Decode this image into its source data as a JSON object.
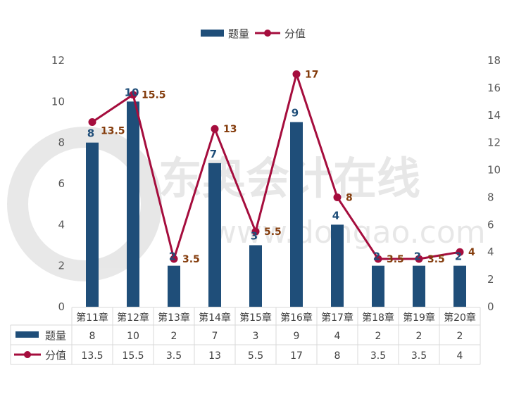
{
  "watermark": {
    "text": "东奥会计在线",
    "url": "www.dongao.com"
  },
  "chart_data": {
    "type": "bar+line",
    "categories": [
      "第11章",
      "第12章",
      "第13章",
      "第14章",
      "第15章",
      "第16章",
      "第17章",
      "第18章",
      "第19章",
      "第20章"
    ],
    "series": [
      {
        "name": "题量",
        "type": "bar",
        "axis": "left",
        "color": "#1f4e79",
        "label_color": "#1f4e79",
        "values": [
          8,
          10,
          2,
          7,
          3,
          9,
          4,
          2,
          2,
          2
        ]
      },
      {
        "name": "分值",
        "type": "line",
        "axis": "right",
        "color": "#a50d3d",
        "label_color": "#843c0c",
        "values": [
          13.5,
          15.5,
          3.5,
          13,
          5.5,
          17,
          8,
          3.5,
          3.5,
          4
        ]
      }
    ],
    "y_left": {
      "range": [
        0,
        12
      ],
      "ticks": [
        0,
        2,
        4,
        6,
        8,
        10,
        12
      ]
    },
    "y_right": {
      "range": [
        0,
        18
      ],
      "ticks": [
        0,
        2,
        4,
        6,
        8,
        10,
        12,
        14,
        16,
        18
      ]
    },
    "legend_position": "top",
    "data_table": true,
    "grid": false
  }
}
